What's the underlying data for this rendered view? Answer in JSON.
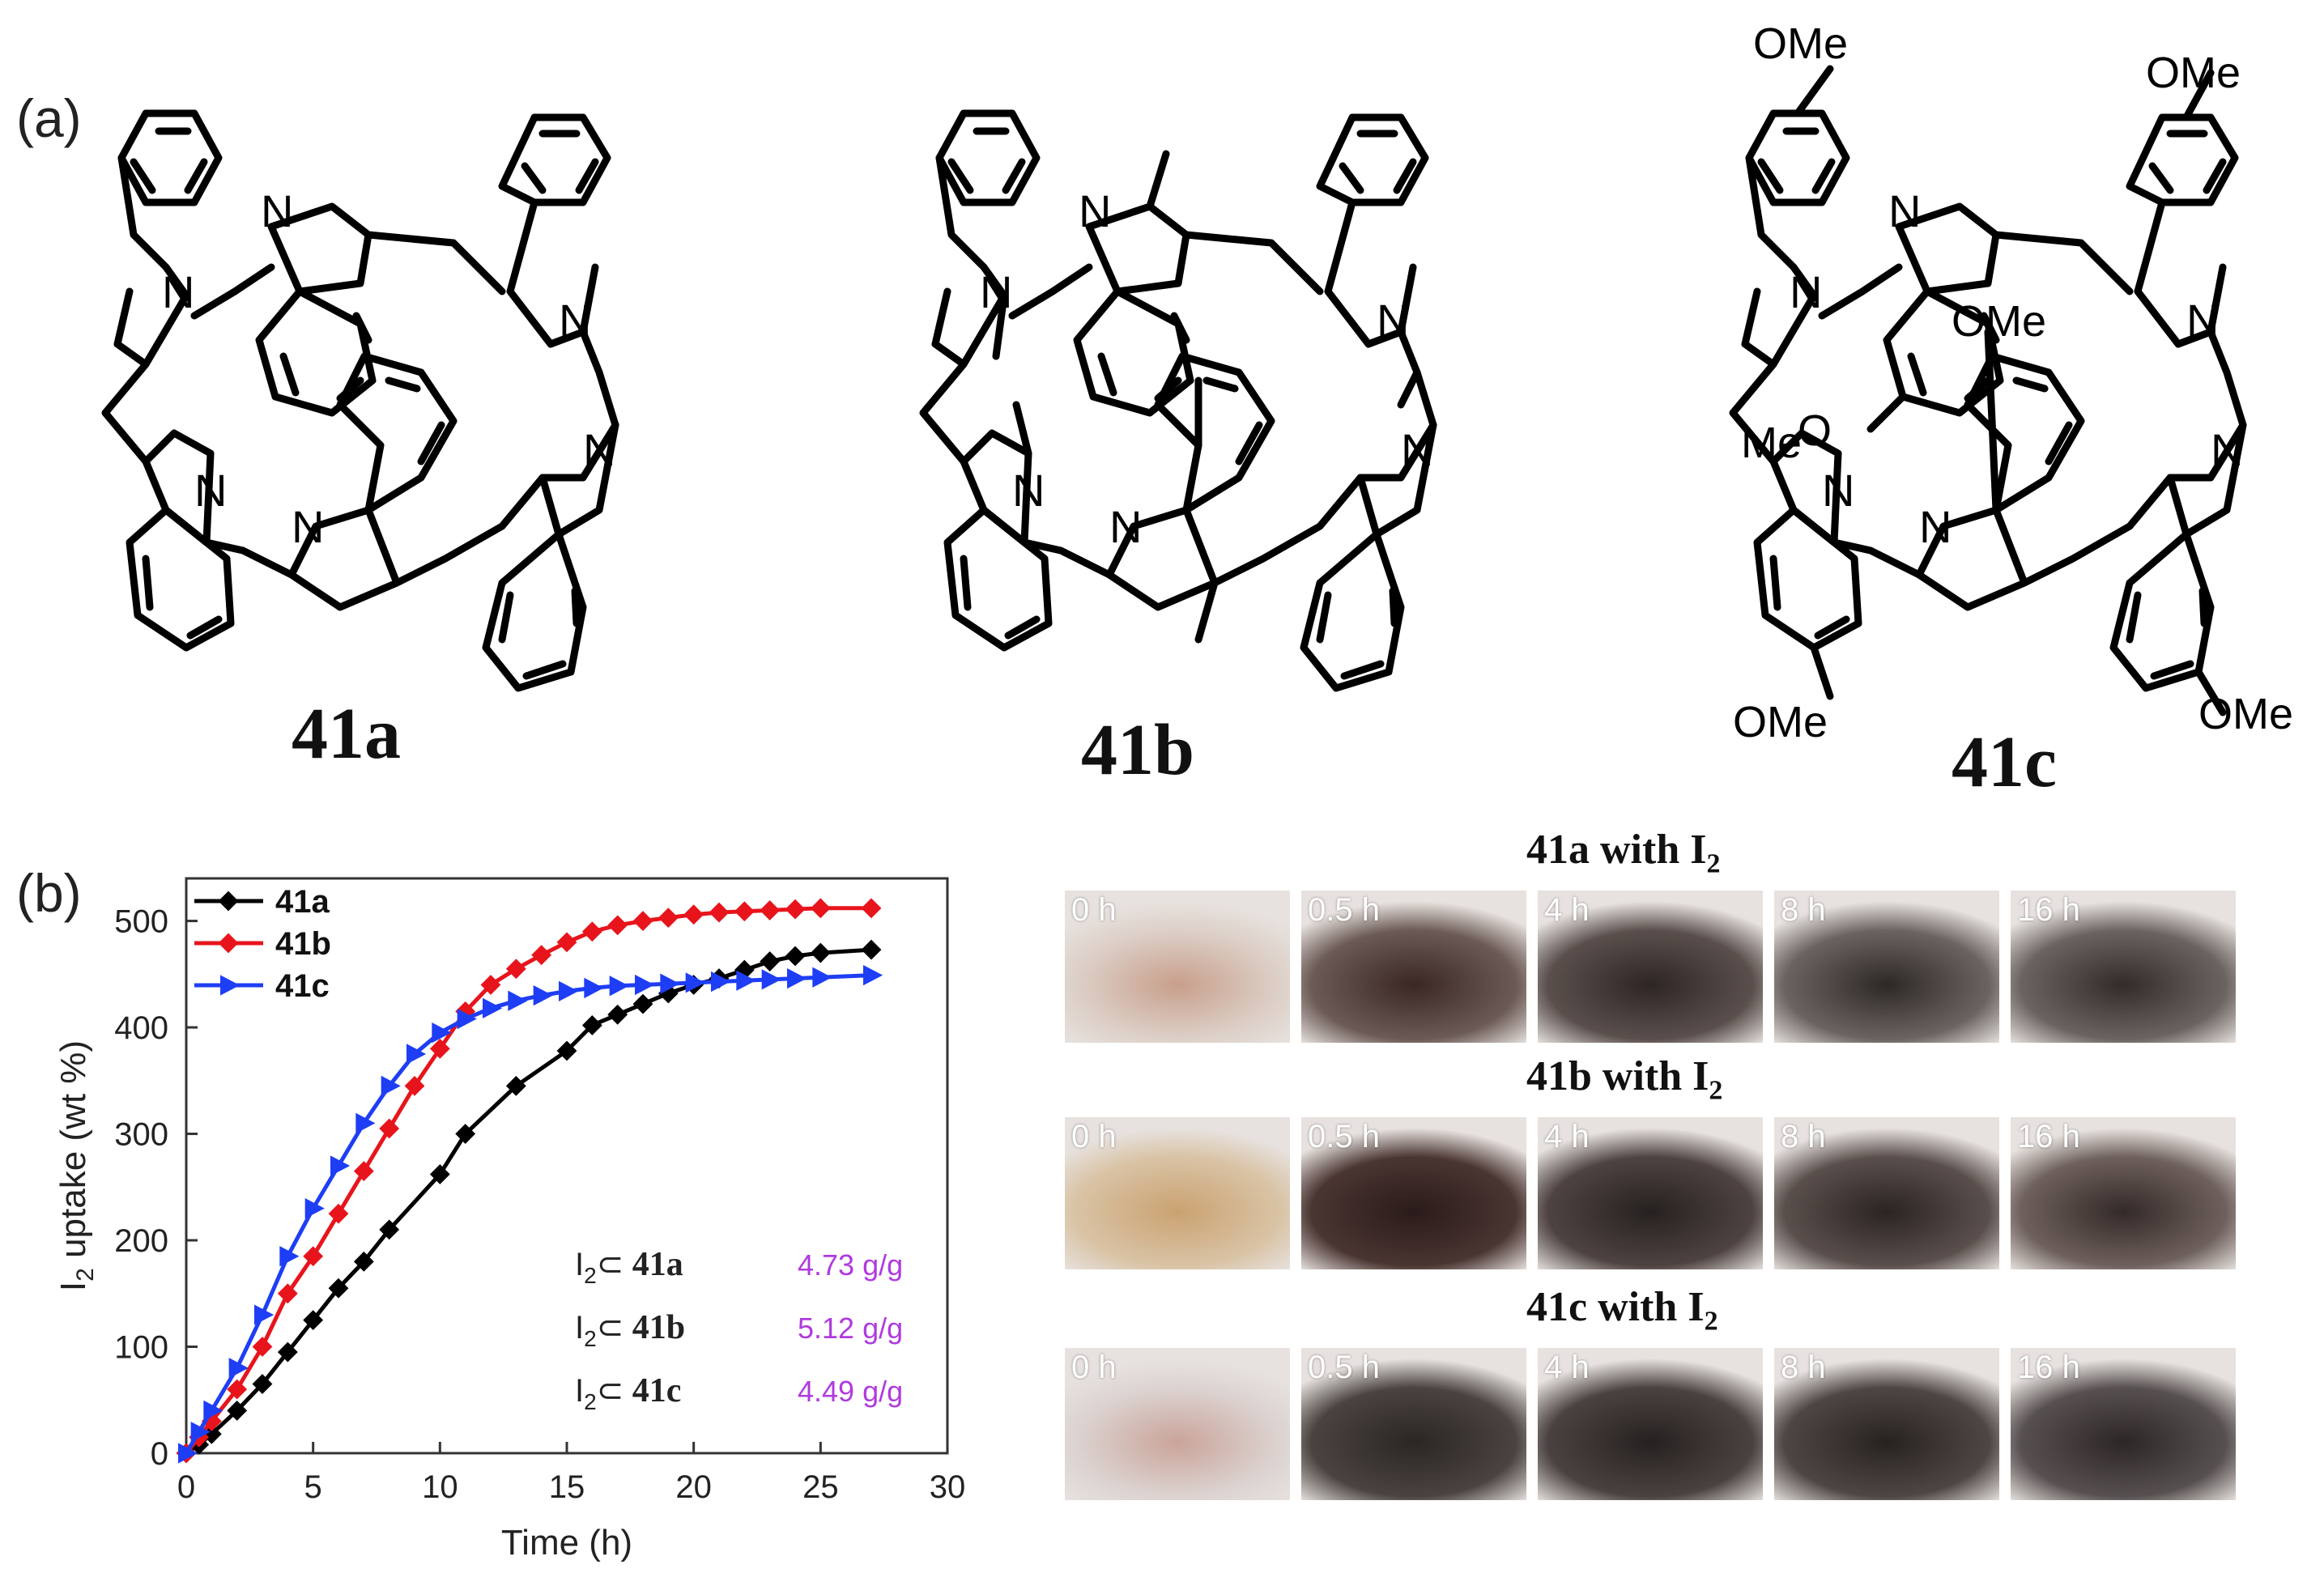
{
  "panel_a": {
    "label": "(a)",
    "compounds": [
      {
        "name": "41a",
        "substituent": "",
        "n_label": "N"
      },
      {
        "name": "41b",
        "substituent": "",
        "n_label": "N"
      },
      {
        "name": "41c",
        "substituent": "OMe",
        "n_label": "N",
        "o_label": "O",
        "me_label": "Me"
      }
    ]
  },
  "panel_b": {
    "label": "(b)",
    "colors": {
      "41a": "#000000",
      "41b": "#e8141c",
      "41c": "#1e3ef5",
      "annot_value": "#b03adf"
    },
    "annotations": [
      {
        "host": "41a",
        "prefix": "I",
        "sub": "2",
        "subset": "⊂",
        "value": "4.73 g/g"
      },
      {
        "host": "41b",
        "prefix": "I",
        "sub": "2",
        "subset": "⊂",
        "value": "5.12 g/g"
      },
      {
        "host": "41c",
        "prefix": "I",
        "sub": "2",
        "subset": "⊂",
        "value": "4.49 g/g"
      }
    ]
  },
  "chart_data": {
    "type": "line",
    "title": "",
    "xlabel": "Time (h)",
    "ylabel": "I2 uptake (wt %)",
    "ylabel_main": "I",
    "ylabel_sub": "2",
    "ylabel_rest": " uptake (wt %)",
    "xlim": [
      0,
      30
    ],
    "ylim": [
      0,
      540
    ],
    "xticks": [
      0,
      5,
      10,
      15,
      20,
      25,
      30
    ],
    "yticks": [
      0,
      100,
      200,
      300,
      400,
      500
    ],
    "legend_placement": "top-left",
    "grid": false,
    "series": [
      {
        "name": "41a",
        "marker": "diamond",
        "x": [
          0,
          0.5,
          1,
          2,
          3,
          4,
          5,
          6,
          7,
          8,
          10,
          11,
          13,
          15,
          16,
          17,
          18,
          19,
          20,
          21,
          22,
          23,
          24,
          25,
          27
        ],
        "y": [
          0,
          8,
          18,
          40,
          65,
          95,
          125,
          155,
          180,
          210,
          262,
          300,
          345,
          378,
          402,
          412,
          422,
          432,
          440,
          446,
          454,
          462,
          467,
          470,
          473
        ]
      },
      {
        "name": "41b",
        "marker": "diamond",
        "x": [
          0,
          0.5,
          1,
          2,
          3,
          4,
          5,
          6,
          7,
          8,
          9,
          10,
          11,
          12,
          13,
          14,
          15,
          16,
          17,
          18,
          19,
          20,
          21,
          22,
          23,
          24,
          25,
          27
        ],
        "y": [
          0,
          15,
          30,
          60,
          100,
          150,
          185,
          225,
          265,
          305,
          345,
          380,
          415,
          440,
          455,
          468,
          480,
          490,
          496,
          500,
          503,
          506,
          508,
          509,
          510,
          511,
          512,
          512
        ]
      },
      {
        "name": "41c",
        "marker": "triangle-right",
        "x": [
          0,
          0.5,
          1,
          2,
          3,
          4,
          5,
          6,
          7,
          8,
          9,
          10,
          11,
          12,
          13,
          14,
          15,
          16,
          17,
          18,
          19,
          20,
          21,
          22,
          23,
          24,
          25,
          27
        ],
        "y": [
          0,
          20,
          40,
          80,
          130,
          185,
          230,
          270,
          310,
          345,
          375,
          395,
          408,
          418,
          425,
          430,
          434,
          437,
          439,
          440,
          441,
          442,
          443,
          444,
          445,
          446,
          447,
          449
        ]
      }
    ]
  },
  "panel_photos": {
    "times": [
      "0 h",
      "0.5 h",
      "4 h",
      "8 h",
      "16 h"
    ],
    "groups": [
      {
        "name": "41a",
        "with": "with I",
        "sub": "2",
        "shades": [
          [
            "#ddd0c8",
            "#c89f8b"
          ],
          [
            "#6b5a55",
            "#3a2723"
          ],
          [
            "#5a4f4c",
            "#2e2624"
          ],
          [
            "#6b6360",
            "#2d2826"
          ],
          [
            "#6b6360",
            "#332b29"
          ]
        ]
      },
      {
        "name": "41b",
        "with": "with I",
        "sub": "2",
        "shades": [
          [
            "#d9c3a5",
            "#caa271"
          ],
          [
            "#4a3532",
            "#2a1b1a"
          ],
          [
            "#4e4341",
            "#262120"
          ],
          [
            "#5a4f4c",
            "#2b2422"
          ],
          [
            "#6e605c",
            "#342a28"
          ]
        ]
      },
      {
        "name": "41c",
        "with": "with I",
        "sub": "2",
        "shades": [
          [
            "#dcd3d1",
            "#caa49a"
          ],
          [
            "#4a433f",
            "#2b2624"
          ],
          [
            "#4a4240",
            "#262120"
          ],
          [
            "#4e4644",
            "#272220"
          ],
          [
            "#575050",
            "#2c2625"
          ]
        ]
      }
    ]
  }
}
